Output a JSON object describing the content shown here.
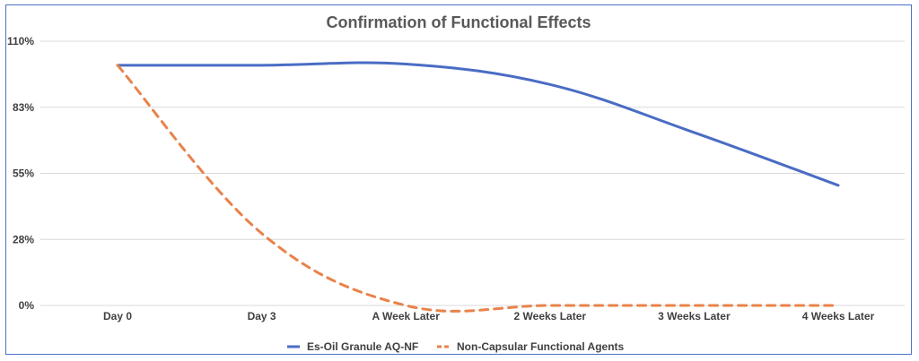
{
  "colors": {
    "series_1": "#4a6cc4",
    "series_2": "#e8834a",
    "grid": "#d9d9d9",
    "axis_text": "#404040",
    "title": "#595959",
    "frame": "#4a72c4"
  },
  "chart_data": {
    "type": "line",
    "title": "Confirmation of Functional Effects",
    "categories": [
      "Day 0",
      "Day 3",
      "A Week Later",
      "2 Weeks Later",
      "3 Weeks Later",
      "4 Weeks Later"
    ],
    "y_ticks": [
      "0%",
      "28%",
      "55%",
      "83%",
      "110%"
    ],
    "ylim": [
      0,
      110
    ],
    "grid": true,
    "legend_position": "bottom",
    "series": [
      {
        "name": "Es-Oil Granule AQ-NF",
        "style": "solid",
        "color": "#4a6cc4",
        "values": [
          100,
          100,
          100.5,
          92,
          72,
          50
        ]
      },
      {
        "name": "Non-Capsular Functional Agents",
        "style": "dashed",
        "color": "#e8834a",
        "values": [
          100,
          30,
          0,
          0,
          0,
          0
        ]
      }
    ]
  }
}
